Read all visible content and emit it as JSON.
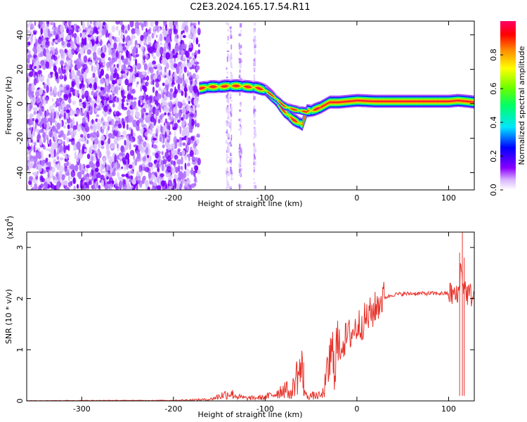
{
  "title": "C2E3.2024.165.17.54.R11",
  "chart_data": [
    {
      "type": "heatmap",
      "xlabel": "Height of straight line (km)",
      "ylabel": "Frequency (Hz)",
      "xlim": [
        -360,
        128
      ],
      "ylim": [
        -50,
        48
      ],
      "xticks": [
        -300,
        -200,
        -100,
        0,
        100
      ],
      "yticks": [
        -40,
        -20,
        0,
        20,
        40
      ],
      "colorbar": {
        "label": "Normalized spectral amplitude",
        "range": [
          0,
          1
        ],
        "ticks": [
          0.0,
          0.2,
          0.4,
          0.6,
          0.8
        ],
        "colors": [
          "#ffffff",
          "#d9b3ff",
          "#8a00ff",
          "#0000ff",
          "#00e5ff",
          "#00ff66",
          "#66ff00",
          "#ffff00",
          "#ff8800",
          "#ff0000",
          "#ff0066"
        ]
      },
      "noise_region_x": [
        -360,
        -172
      ],
      "ridge": {
        "x": [
          -172,
          -160,
          -150,
          -140,
          -130,
          -120,
          -110,
          -100,
          -90,
          -80,
          -70,
          -60,
          -55,
          -50,
          -40,
          -30,
          -20,
          -10,
          0,
          20,
          40,
          60,
          80,
          100,
          110,
          120,
          128
        ],
        "y": [
          9,
          10,
          10,
          10.5,
          10.5,
          10,
          9.5,
          8,
          3,
          -4,
          -9,
          -12,
          -4,
          -4,
          -2,
          1,
          1,
          1.5,
          2,
          1.5,
          1.5,
          1.5,
          1.5,
          1.5,
          2,
          1.5,
          1
        ],
        "secondary": {
          "x": [
            -100,
            -90,
            -80,
            -75,
            -70,
            -65,
            -60,
            -55
          ],
          "y": [
            8,
            4,
            -1,
            -2,
            -3,
            -3.5,
            -4,
            -4.5
          ]
        }
      }
    },
    {
      "type": "line",
      "xlabel": "Height of straight line (km)",
      "ylabel": "SNR (10 * v/v)",
      "scale_label": "(x10",
      "scale_exp": "4",
      "xlim": [
        -360,
        128
      ],
      "ylim": [
        0,
        3.3
      ],
      "xticks": [
        -300,
        -200,
        -100,
        0,
        100
      ],
      "yticks": [
        0,
        1,
        2,
        3
      ],
      "color": "#e8322a",
      "profile": {
        "x": [
          -360,
          -200,
          -160,
          -145,
          -138,
          -130,
          -120,
          -100,
          -88,
          -78,
          -72,
          -66,
          -60,
          -56,
          -50,
          -44,
          -38,
          -34,
          -30,
          -25,
          -20,
          -10,
          0,
          10,
          20,
          25,
          30,
          40,
          60,
          80,
          100,
          106,
          110,
          113,
          116,
          120,
          128
        ],
        "y": [
          0.005,
          0.01,
          0.03,
          0.12,
          0.15,
          0.08,
          0.05,
          0.07,
          0.15,
          0.25,
          0.12,
          0.5,
          0.6,
          0.1,
          0.1,
          0.1,
          0.1,
          0.35,
          0.75,
          0.9,
          1.05,
          1.25,
          1.45,
          1.6,
          1.8,
          1.95,
          2.02,
          2.08,
          2.1,
          2.1,
          2.1,
          2.08,
          2.0,
          2.6,
          2.3,
          2.1,
          2.05
        ]
      },
      "spikes": [
        {
          "x": -135,
          "y": 0.18
        },
        {
          "x": -70,
          "y": 0.35
        },
        {
          "x": -58,
          "y": 0.75
        },
        {
          "x": 112,
          "y": 2.9
        },
        {
          "x": 115,
          "y": 3.3
        },
        {
          "x": 117,
          "y": 2.8
        }
      ]
    }
  ]
}
